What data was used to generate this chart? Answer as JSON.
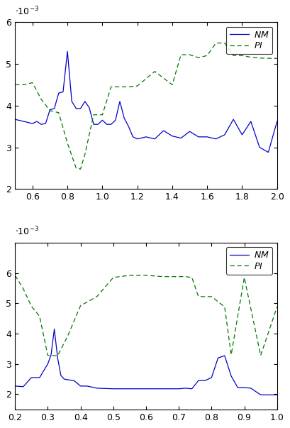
{
  "e1": {
    "nm_x": [
      0.5,
      0.55,
      0.6,
      0.625,
      0.65,
      0.675,
      0.7,
      0.725,
      0.75,
      0.775,
      0.8,
      0.825,
      0.85,
      0.875,
      0.9,
      0.925,
      0.95,
      0.975,
      1.0,
      1.025,
      1.05,
      1.075,
      1.1,
      1.125,
      1.15,
      1.175,
      1.2,
      1.25,
      1.3,
      1.35,
      1.4,
      1.45,
      1.5,
      1.55,
      1.6,
      1.65,
      1.7,
      1.75,
      1.8,
      1.85,
      1.9,
      1.95,
      2.0
    ],
    "nm_y": [
      3.67,
      3.62,
      3.57,
      3.62,
      3.55,
      3.57,
      3.9,
      3.93,
      4.3,
      4.33,
      5.3,
      4.1,
      3.93,
      3.93,
      4.1,
      3.95,
      3.55,
      3.55,
      3.65,
      3.55,
      3.55,
      3.65,
      4.1,
      3.7,
      3.5,
      3.25,
      3.2,
      3.25,
      3.2,
      3.4,
      3.27,
      3.22,
      3.38,
      3.25,
      3.25,
      3.2,
      3.3,
      3.67,
      3.3,
      3.62,
      3.0,
      2.88,
      3.62
    ],
    "pi_x": [
      0.5,
      0.55,
      0.6,
      0.65,
      0.7,
      0.75,
      0.8,
      0.85,
      0.875,
      0.9,
      0.95,
      1.0,
      1.05,
      1.1,
      1.15,
      1.2,
      1.3,
      1.4,
      1.45,
      1.5,
      1.55,
      1.6,
      1.65,
      1.7,
      1.75,
      1.8,
      1.85,
      1.9,
      2.0
    ],
    "pi_y": [
      4.5,
      4.5,
      4.55,
      4.15,
      3.88,
      3.83,
      3.1,
      2.5,
      2.48,
      2.83,
      3.78,
      3.78,
      4.45,
      4.45,
      4.45,
      4.47,
      4.82,
      4.5,
      5.22,
      5.22,
      5.15,
      5.2,
      5.5,
      5.5,
      5.2,
      5.2,
      5.16,
      5.14,
      5.13
    ],
    "xlim": [
      0.5,
      2.0
    ],
    "ylim": [
      2.0,
      6.0
    ],
    "yticks": [
      2,
      3,
      4,
      5,
      6
    ],
    "xticks": [
      0.6,
      0.8,
      1.0,
      1.2,
      1.4,
      1.6,
      1.8,
      2.0
    ]
  },
  "e2": {
    "nm_x": [
      0.2,
      0.225,
      0.25,
      0.275,
      0.3,
      0.31,
      0.32,
      0.33,
      0.34,
      0.35,
      0.36,
      0.38,
      0.4,
      0.42,
      0.45,
      0.5,
      0.55,
      0.6,
      0.65,
      0.7,
      0.72,
      0.74,
      0.76,
      0.78,
      0.8,
      0.82,
      0.84,
      0.86,
      0.88,
      0.9,
      0.92,
      0.95,
      1.0
    ],
    "nm_y": [
      2.27,
      2.25,
      2.55,
      2.55,
      3.0,
      3.3,
      4.15,
      3.2,
      2.62,
      2.5,
      2.48,
      2.45,
      2.27,
      2.27,
      2.2,
      2.18,
      2.18,
      2.18,
      2.18,
      2.18,
      2.2,
      2.18,
      2.45,
      2.45,
      2.55,
      3.2,
      3.27,
      2.6,
      2.22,
      2.22,
      2.2,
      1.98,
      1.98
    ],
    "pi_x": [
      0.2,
      0.225,
      0.25,
      0.275,
      0.3,
      0.33,
      0.36,
      0.4,
      0.45,
      0.5,
      0.55,
      0.6,
      0.65,
      0.7,
      0.72,
      0.74,
      0.76,
      0.8,
      0.84,
      0.86,
      0.9,
      0.95,
      1.0
    ],
    "pi_y": [
      5.92,
      5.48,
      4.9,
      4.57,
      3.28,
      3.27,
      3.9,
      4.92,
      5.22,
      5.85,
      5.92,
      5.92,
      5.88,
      5.88,
      5.88,
      5.85,
      5.22,
      5.22,
      4.88,
      3.3,
      5.85,
      3.28,
      4.88
    ],
    "xlim": [
      0.2,
      1.0
    ],
    "ylim": [
      1.5,
      7.0
    ],
    "yticks": [
      2,
      3,
      4,
      5,
      6
    ],
    "xticks": [
      0.2,
      0.3,
      0.4,
      0.5,
      0.6,
      0.7,
      0.8,
      0.9,
      1.0
    ]
  },
  "nm_color": "#0000cc",
  "pi_color": "#007700",
  "scale": 0.001,
  "fig_width": 4.09,
  "fig_height": 6.03,
  "dpi": 100
}
